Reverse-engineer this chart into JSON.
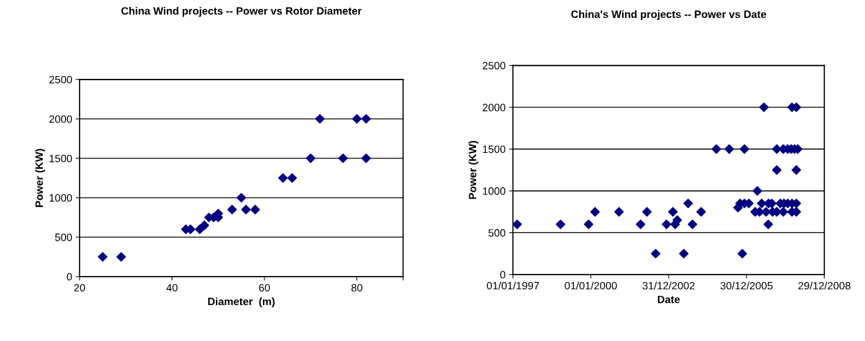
{
  "chart_data": [
    {
      "type": "scatter",
      "title": "China Wind projects -- Power vs Rotor Diameter",
      "xlabel": "Diameter  (m)",
      "ylabel": "Power (KW)",
      "marker": "diamond",
      "grid": "y",
      "legend": false,
      "xlim": [
        20,
        90
      ],
      "xticks": [
        20,
        40,
        60,
        80,
        {
          "value": 90,
          "label": null
        }
      ],
      "ylim": [
        0,
        2500
      ],
      "yticks": [
        0,
        500,
        1000,
        1500,
        2000,
        2500
      ],
      "series": [
        {
          "color": "#000080",
          "x": [
            25,
            29,
            43,
            44,
            46,
            47,
            48,
            49,
            50,
            50,
            53,
            55,
            56,
            58,
            64,
            66,
            70,
            72,
            77,
            80,
            82,
            82
          ],
          "values": [
            250,
            250,
            600,
            600,
            600,
            650,
            750,
            750,
            800,
            750,
            850,
            1000,
            850,
            850,
            1250,
            1250,
            1500,
            2000,
            1500,
            2000,
            2000,
            1500
          ]
        }
      ]
    },
    {
      "type": "scatter",
      "title": "China's Wind projects -- Power vs Date",
      "xlabel": "Date",
      "ylabel": "Power (KW)",
      "marker": "diamond",
      "grid": "y",
      "legend": false,
      "xlim": [
        "1997-01-01",
        "2008-12-29"
      ],
      "xticks": [
        {
          "value": "1997-01-01",
          "label": "01/01/1997"
        },
        {
          "value": "2000-01-01",
          "label": "01/01/2000"
        },
        {
          "value": "2002-12-31",
          "label": "31/12/2002"
        },
        {
          "value": "2005-12-30",
          "label": "30/12/2005"
        },
        {
          "value": "2008-12-29",
          "label": "29/12/2008"
        }
      ],
      "ylim": [
        0,
        2500
      ],
      "yticks": [
        0,
        500,
        1000,
        1500,
        2000,
        2500
      ],
      "series": [
        {
          "color": "#000080",
          "x": [
            "1997-03",
            "1998-11",
            "1999-12",
            "2000-03",
            "2001-02",
            "2001-12",
            "2002-03",
            "2002-07",
            "2002-12",
            "2003-03",
            "2003-04",
            "2003-05",
            "2003-08",
            "2003-10",
            "2003-12",
            "2004-04",
            "2004-11",
            "2005-05",
            "2005-12",
            "2005-09",
            "2005-10",
            "2005-12",
            "2006-02",
            "2005-11",
            "2006-06",
            "2006-05",
            "2006-07",
            "2006-09",
            "2006-08",
            "2006-10",
            "2006-11-05",
            "2006-12-20",
            "2006-11",
            "2007-01",
            "2007-03",
            "2007-03",
            "2007-03",
            "2007-04-20",
            "2007-06-10",
            "2007-06",
            "2007-06",
            "2007-08-01",
            "2007-09-20",
            "2007-11-05",
            "2007-12-20",
            "2007-10",
            "2007-12",
            "2007-08",
            "2007-10",
            "2007-12",
            "2007-10",
            "2007-12",
            "2007-12"
          ],
          "values": [
            600,
            600,
            600,
            750,
            750,
            600,
            750,
            250,
            600,
            750,
            600,
            650,
            250,
            850,
            600,
            750,
            1500,
            1500,
            1500,
            800,
            850,
            850,
            850,
            250,
            1000,
            750,
            750,
            2000,
            850,
            750,
            850,
            850,
            600,
            750,
            750,
            1500,
            1250,
            850,
            850,
            750,
            1500,
            1500,
            1500,
            1500,
            1500,
            2000,
            2000,
            850,
            850,
            850,
            750,
            750,
            1250
          ]
        }
      ]
    }
  ]
}
